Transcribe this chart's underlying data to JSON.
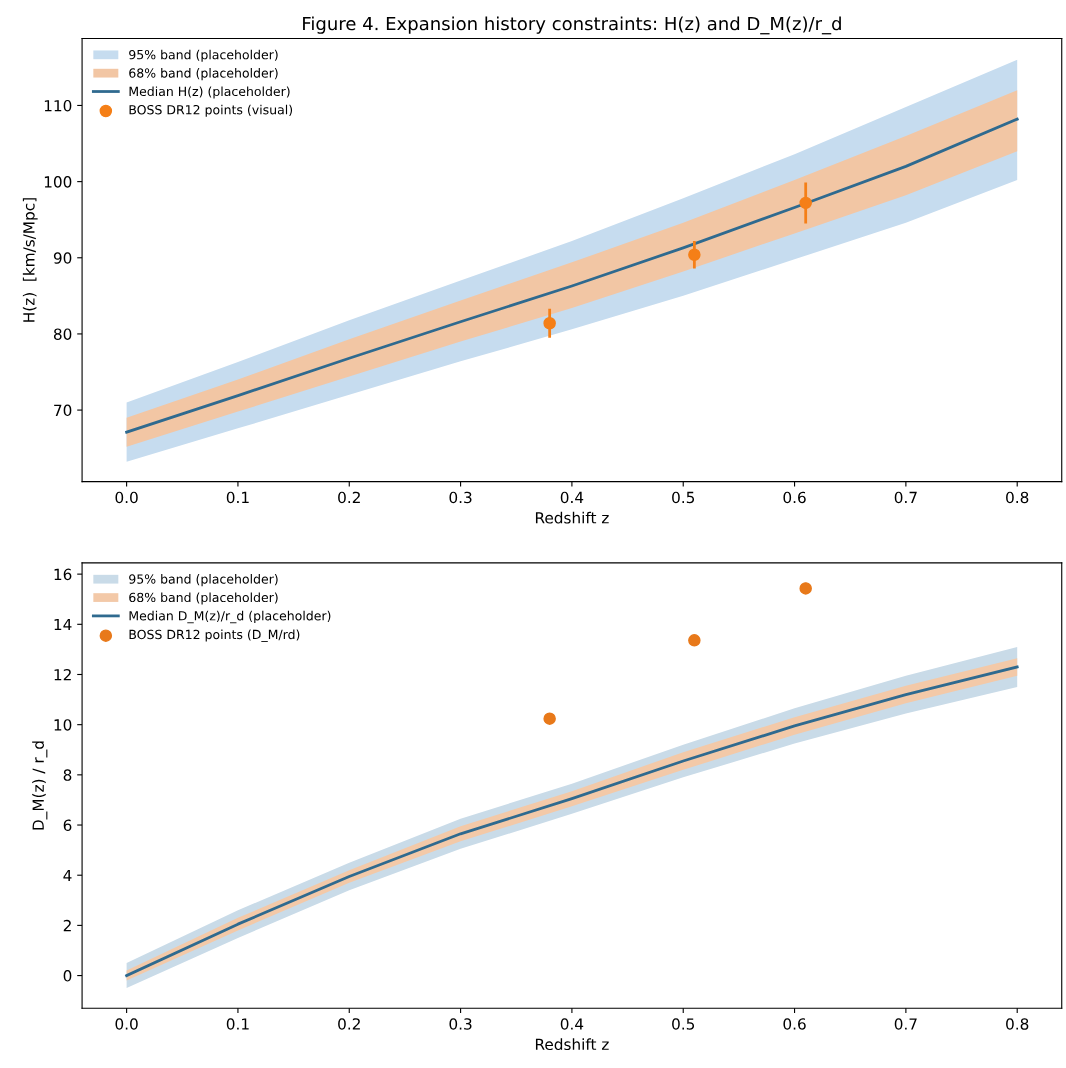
{
  "chart_data": [
    {
      "type": "line",
      "title": "Figure 4. Expansion history constraints: H(z) and D_M(z)/r_d",
      "xlabel": "Redshift z",
      "ylabel": "H(z)  [km/s/Mpc]",
      "xlim": [
        -0.04,
        0.84
      ],
      "xticks": [
        {
          "value": 0.0,
          "label": "0.0"
        },
        0.1,
        0.2,
        0.3,
        0.4,
        0.5,
        0.6,
        0.7,
        0.8
      ],
      "ylim": [
        60.6,
        118.8
      ],
      "yticks": [
        70,
        80,
        90,
        100,
        110
      ],
      "grid": false,
      "legend": "top left",
      "series": [
        {
          "type": "area",
          "name": "95% band (placeholder)",
          "color": "#c6dcef",
          "x": [
            0.0,
            0.1,
            0.2,
            0.3,
            0.4,
            0.5,
            0.6,
            0.7,
            0.8
          ],
          "values": [
            null,
            null,
            null,
            null,
            null,
            null,
            null,
            null,
            null
          ],
          "lower": [
            63.2,
            67.6,
            72.0,
            76.4,
            80.6,
            85.0,
            89.8,
            94.6,
            100.2
          ],
          "upper": [
            71.0,
            76.3,
            81.8,
            87.0,
            92.2,
            97.8,
            103.6,
            109.8,
            116.0
          ]
        },
        {
          "type": "area",
          "name": "68% band (placeholder)",
          "color": "#f2c6a4",
          "x": [
            0.0,
            0.1,
            0.2,
            0.3,
            0.4,
            0.5,
            0.6,
            0.7,
            0.8
          ],
          "values": [
            null,
            null,
            null,
            null,
            null,
            null,
            null,
            null,
            null
          ],
          "lower": [
            65.2,
            69.8,
            74.4,
            79.0,
            83.4,
            88.2,
            93.2,
            98.2,
            104.0
          ],
          "upper": [
            69.0,
            74.0,
            79.3,
            84.4,
            89.4,
            94.6,
            100.2,
            106.0,
            112.0
          ]
        },
        {
          "type": "line",
          "name": "Median H(z) (placeholder)",
          "color": "#2f6a8f",
          "marker": "none",
          "line_style": "solid",
          "x": [
            0.0,
            0.1,
            0.2,
            0.3,
            0.4,
            0.5,
            0.6,
            0.7,
            0.8
          ],
          "values": [
            67.1,
            71.9,
            76.8,
            81.6,
            86.3,
            91.3,
            96.6,
            102.0,
            108.2
          ]
        },
        {
          "type": "scatter",
          "name": "BOSS DR12 points (visual)",
          "color": "#f57f17",
          "marker": "circle",
          "x": [
            0.38,
            0.51,
            0.61
          ],
          "values": [
            81.4,
            90.4,
            97.2
          ],
          "errors": [
            1.9,
            1.8,
            2.7
          ]
        }
      ]
    },
    {
      "type": "line",
      "xlabel": "Redshift z",
      "ylabel": "D_M(z) / r_d",
      "xlim": [
        -0.04,
        0.84
      ],
      "xticks": [
        {
          "value": 0.0,
          "label": "0.0"
        },
        0.1,
        0.2,
        0.3,
        0.4,
        0.5,
        0.6,
        0.7,
        0.8
      ],
      "ylim": [
        -1.3,
        16.45
      ],
      "yticks": [
        0,
        2,
        4,
        6,
        8,
        10,
        12,
        14,
        16
      ],
      "grid": false,
      "legend": "top left",
      "series": [
        {
          "type": "area",
          "name": "95% band (placeholder)",
          "color": "#c9dbe8",
          "x": [
            0.0,
            0.1,
            0.2,
            0.3,
            0.4,
            0.5,
            0.6,
            0.7,
            0.8
          ],
          "values": [
            null,
            null,
            null,
            null,
            null,
            null,
            null,
            null,
            null
          ],
          "lower": [
            -0.5,
            1.5,
            3.4,
            5.05,
            6.45,
            7.9,
            9.25,
            10.45,
            11.5
          ],
          "upper": [
            0.5,
            2.6,
            4.5,
            6.25,
            7.65,
            9.2,
            10.65,
            11.95,
            13.1
          ]
        },
        {
          "type": "area",
          "name": "68% band (placeholder)",
          "color": "#f3c9a8",
          "x": [
            0.0,
            0.1,
            0.2,
            0.3,
            0.4,
            0.5,
            0.6,
            0.7,
            0.8
          ],
          "values": [
            null,
            null,
            null,
            null,
            null,
            null,
            null,
            null,
            null
          ],
          "lower": [
            -0.2,
            1.8,
            3.7,
            5.35,
            6.75,
            8.2,
            9.6,
            10.85,
            11.95
          ],
          "upper": [
            0.2,
            2.3,
            4.2,
            5.95,
            7.35,
            8.9,
            10.3,
            11.55,
            12.65
          ]
        },
        {
          "type": "line",
          "name": "Median D_M(z)/r_d (placeholder)",
          "color": "#2f6a8f",
          "marker": "none",
          "line_style": "solid",
          "x": [
            0.0,
            0.1,
            0.2,
            0.3,
            0.4,
            0.5,
            0.6,
            0.7,
            0.8
          ],
          "values": [
            0.0,
            2.05,
            3.95,
            5.65,
            7.05,
            8.55,
            9.95,
            11.2,
            12.3
          ]
        },
        {
          "type": "scatter",
          "name": "BOSS DR12 points (D_M/rd)",
          "color": "#e8791a",
          "marker": "circle",
          "x": [
            0.38,
            0.51,
            0.61
          ],
          "values": [
            10.24,
            13.36,
            15.43
          ]
        }
      ]
    }
  ]
}
